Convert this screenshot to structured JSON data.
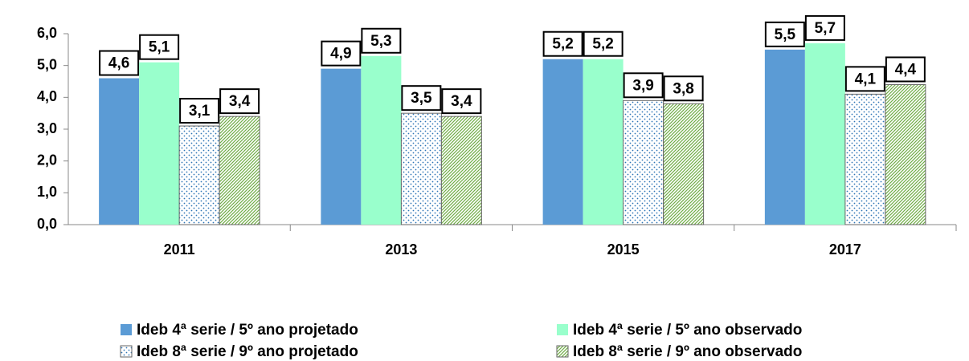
{
  "chart_data": {
    "type": "bar",
    "categories": [
      "2011",
      "2013",
      "2015",
      "2017"
    ],
    "series": [
      {
        "name": "Ideb 4ª serie / 5º ano projetado",
        "color": "#5b9bd5",
        "pattern": "solid",
        "values": [
          4.6,
          4.9,
          5.2,
          5.5
        ],
        "value_labels": [
          "4,6",
          "4,9",
          "5,2",
          "5,5"
        ]
      },
      {
        "name": "Ideb 4ª serie / 5º ano observado",
        "color": "#99ffcc",
        "pattern": "solid",
        "values": [
          5.1,
          5.3,
          5.2,
          5.7
        ],
        "value_labels": [
          "5,1",
          "5,3",
          "5,2",
          "5,7"
        ]
      },
      {
        "name": "Ideb 8ª serie / 9º ano projetado",
        "color": "#2e75b6",
        "pattern": "dots",
        "values": [
          3.1,
          3.5,
          3.9,
          4.1
        ],
        "value_labels": [
          "3,1",
          "3,5",
          "3,9",
          "4,1"
        ]
      },
      {
        "name": "Ideb 8ª serie / 9º ano observado",
        "color": "#70ad47",
        "pattern": "hatch",
        "values": [
          3.4,
          3.4,
          3.8,
          4.4
        ],
        "value_labels": [
          "3,4",
          "3,4",
          "3,8",
          "4,4"
        ]
      }
    ],
    "ylim": [
      0,
      6
    ],
    "yticks": [
      {
        "value": 0,
        "label": "0,0"
      },
      {
        "value": 1,
        "label": "1,0"
      },
      {
        "value": 2,
        "label": "2,0"
      },
      {
        "value": 3,
        "label": "3,0"
      },
      {
        "value": 4,
        "label": "4,0"
      },
      {
        "value": 5,
        "label": "5,0"
      },
      {
        "value": 6,
        "label": "6,0"
      }
    ],
    "legend": "bottom"
  }
}
